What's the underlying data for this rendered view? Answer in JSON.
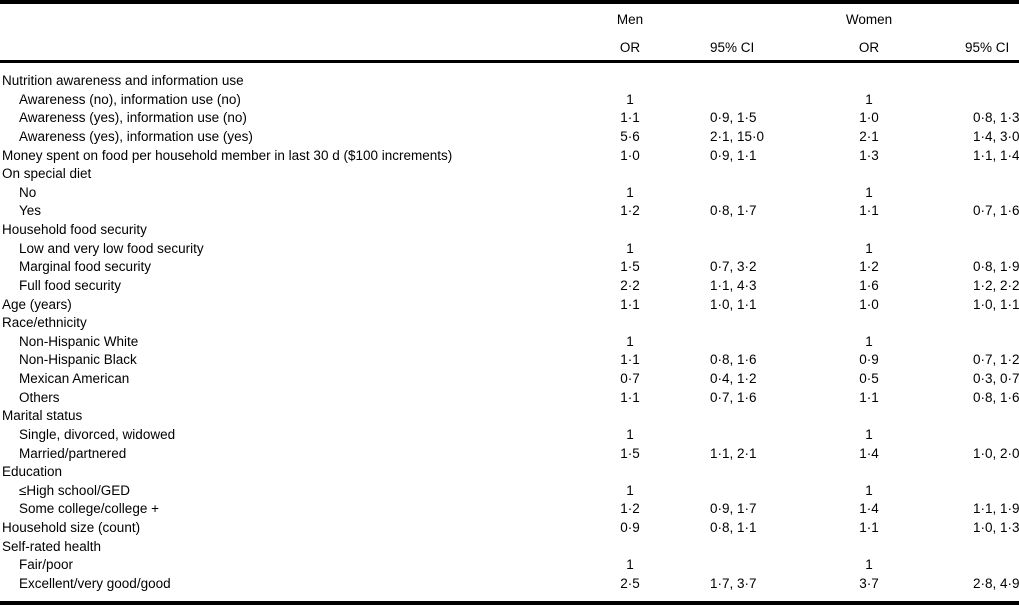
{
  "table": {
    "col_groups": [
      {
        "label": "Men"
      },
      {
        "label": "Women"
      }
    ],
    "sub_headers": [
      "OR",
      "95% CI",
      "OR",
      "95% CI"
    ],
    "rows": [
      {
        "label": "Nutrition awareness and information use",
        "indent": 0
      },
      {
        "label": "Awareness (no), information use (no)",
        "indent": 1,
        "men_or": "1",
        "women_or": "1"
      },
      {
        "label": "Awareness (yes), information use (no)",
        "indent": 1,
        "men_or": "1·1",
        "men_ci": "0·9, 1·5",
        "women_or": "1·0",
        "women_ci": "0·8, 1·3"
      },
      {
        "label": "Awareness (yes), information use (yes)",
        "indent": 1,
        "men_or": "5·6",
        "men_ci": "2·1, 15·0",
        "women_or": "2·1",
        "women_ci": "1·4, 3·0"
      },
      {
        "label": "Money spent on food per household member in last 30 d ($100 increments)",
        "indent": 0,
        "men_or": "1·0",
        "men_ci": "0·9, 1·1",
        "women_or": "1·3",
        "women_ci": "1·1, 1·4"
      },
      {
        "label": "On special diet",
        "indent": 0
      },
      {
        "label": "No",
        "indent": 1,
        "men_or": "1",
        "women_or": "1"
      },
      {
        "label": "Yes",
        "indent": 1,
        "men_or": "1·2",
        "men_ci": "0·8, 1·7",
        "women_or": "1·1",
        "women_ci": "0·7, 1·6"
      },
      {
        "label": "Household food security",
        "indent": 0
      },
      {
        "label": "Low and very low food security",
        "indent": 1,
        "men_or": "1",
        "women_or": "1"
      },
      {
        "label": "Marginal food security",
        "indent": 1,
        "men_or": "1·5",
        "men_ci": "0·7, 3·2",
        "women_or": "1·2",
        "women_ci": "0·8, 1·9"
      },
      {
        "label": "Full food security",
        "indent": 1,
        "men_or": "2·2",
        "men_ci": "1·1, 4·3",
        "women_or": "1·6",
        "women_ci": "1·2, 2·2"
      },
      {
        "label": "Age (years)",
        "indent": 0,
        "men_or": "1·1",
        "men_ci": "1·0, 1·1",
        "women_or": "1·0",
        "women_ci": "1·0, 1·1"
      },
      {
        "label": "Race/ethnicity",
        "indent": 0
      },
      {
        "label": "Non-Hispanic White",
        "indent": 1,
        "men_or": "1",
        "women_or": "1"
      },
      {
        "label": "Non-Hispanic Black",
        "indent": 1,
        "men_or": "1·1",
        "men_ci": "0·8, 1·6",
        "women_or": "0·9",
        "women_ci": "0·7, 1·2"
      },
      {
        "label": "Mexican American",
        "indent": 1,
        "men_or": "0·7",
        "men_ci": "0·4, 1·2",
        "women_or": "0·5",
        "women_ci": "0·3, 0·7"
      },
      {
        "label": "Others",
        "indent": 1,
        "men_or": "1·1",
        "men_ci": "0·7, 1·6",
        "women_or": "1·1",
        "women_ci": "0·8, 1·6"
      },
      {
        "label": "Marital status",
        "indent": 0
      },
      {
        "label": "Single, divorced, widowed",
        "indent": 1,
        "men_or": "1",
        "women_or": "1"
      },
      {
        "label": "Married/partnered",
        "indent": 1,
        "men_or": "1·5",
        "men_ci": "1·1, 2·1",
        "women_or": "1·4",
        "women_ci": "1·0, 2·0"
      },
      {
        "label": "Education",
        "indent": 0
      },
      {
        "label": "≤High school/GED",
        "indent": 1,
        "men_or": "1",
        "women_or": "1"
      },
      {
        "label": "Some college/college +",
        "indent": 1,
        "men_or": "1·2",
        "men_ci": "0·9, 1·7",
        "women_or": "1·4",
        "women_ci": "1·1, 1·9"
      },
      {
        "label": "Household size (count)",
        "indent": 0,
        "men_or": "0·9",
        "men_ci": "0·8, 1·1",
        "women_or": "1·1",
        "women_ci": "1·0, 1·3"
      },
      {
        "label": "Self-rated health",
        "indent": 0
      },
      {
        "label": "Fair/poor",
        "indent": 1,
        "men_or": "1",
        "women_or": "1"
      },
      {
        "label": "Excellent/very good/good",
        "indent": 1,
        "men_or": "2·5",
        "men_ci": "1·7, 3·7",
        "women_or": "3·7",
        "women_ci": "2·8, 4·9"
      }
    ]
  }
}
